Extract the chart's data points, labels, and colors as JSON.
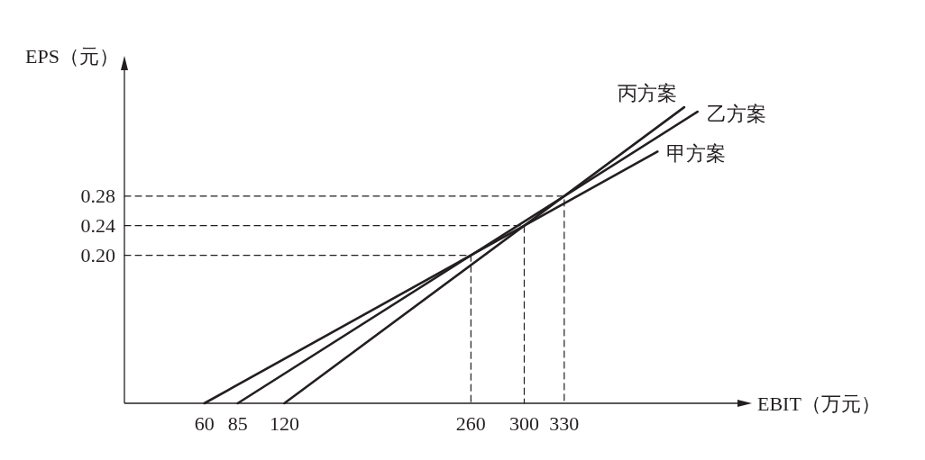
{
  "chart_data": {
    "type": "line",
    "xlabel": "EBIT（万元）",
    "ylabel": "EPS（元）",
    "xlim": [
      0,
      460
    ],
    "ylim": [
      0,
      0.45
    ],
    "xticks": [
      60,
      85,
      120,
      260,
      300,
      330
    ],
    "yticks": [
      {
        "value": 0.2,
        "label": "0.20"
      },
      0.24,
      0.28
    ],
    "grid": false,
    "marker": "none",
    "line_style": "solid",
    "series": [
      {
        "name": "甲方案",
        "color": "#231f20",
        "x": [
          60,
          400
        ],
        "values": [
          0,
          0.34
        ]
      },
      {
        "name": "乙方案",
        "color": "#231f20",
        "x": [
          85,
          430
        ],
        "values": [
          0,
          0.394
        ]
      },
      {
        "name": "丙方案",
        "color": "#231f20",
        "x": [
          120,
          420
        ],
        "values": [
          0,
          0.4
        ]
      },
      {
        "color": "#231f20",
        "line_style": "dashed",
        "x": [
          0,
          260,
          260
        ],
        "values": [
          0.2,
          0.2,
          0
        ]
      },
      {
        "color": "#231f20",
        "line_style": "dashed",
        "x": [
          0,
          300,
          300
        ],
        "values": [
          0.24,
          0.24,
          0
        ]
      },
      {
        "color": "#231f20",
        "line_style": "dashed",
        "x": [
          0,
          330,
          330
        ],
        "values": [
          0.28,
          0.28,
          0
        ]
      }
    ]
  }
}
